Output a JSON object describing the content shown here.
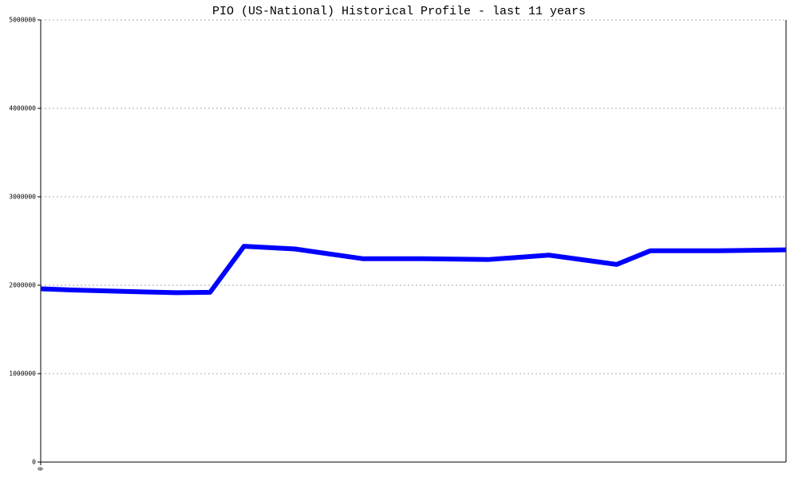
{
  "chart_data": {
    "type": "line",
    "title": "PIO (US-National) Historical Profile - last 11 years",
    "x": [
      0,
      1,
      2,
      3,
      4,
      5,
      6,
      7.5,
      9.5,
      11.3,
      13.2,
      15,
      17,
      18,
      20,
      22
    ],
    "series": [
      {
        "name": "PIO",
        "color": "#0000ff",
        "values": [
          1960000,
          1945000,
          1935000,
          1925000,
          1915000,
          1920000,
          2440000,
          2410000,
          2300000,
          2300000,
          2290000,
          2340000,
          2235000,
          2390000,
          2390000,
          2400000
        ]
      }
    ],
    "xlim": [
      0,
      22
    ],
    "xticks": [
      0
    ],
    "ylim": [
      0,
      5000000
    ],
    "yticks": [
      0,
      1000000,
      2000000,
      3000000,
      4000000,
      5000000
    ],
    "grid": true
  }
}
